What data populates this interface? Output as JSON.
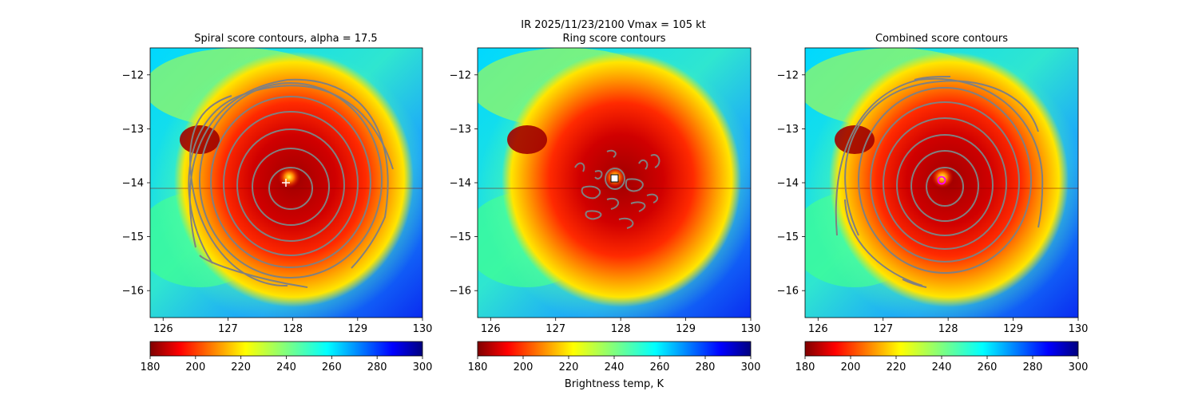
{
  "suptitle": "IR  2025/11/23/2100    Vmax = 105 kt",
  "colorbar_label": "Brightness temp, K",
  "chart_data": [
    {
      "type": "heatmap",
      "title": "Spiral score contours, alpha = 17.5",
      "xlim": [
        125.8,
        130.0
      ],
      "ylim": [
        -16.5,
        -11.5
      ],
      "xticks": [
        126,
        127,
        128,
        129,
        130
      ],
      "yticks": [
        -12,
        -13,
        -14,
        -15,
        -16
      ],
      "xtick_labels": [
        "126",
        "127",
        "128",
        "129",
        "130"
      ],
      "ytick_labels": [
        "−12",
        "−13",
        "−14",
        "−15",
        "−16"
      ],
      "center_marker": {
        "lon": 128.35,
        "lat": -14.0,
        "symbol": "plus",
        "color": "#ffffff"
      },
      "contour_color": "#808080",
      "colorbar": {
        "cmap": "jet_r",
        "vmin": 180,
        "vmax": 300,
        "ticks": [
          "180",
          "200",
          "220",
          "240",
          "260",
          "280",
          "300"
        ]
      }
    },
    {
      "type": "heatmap",
      "title": "Ring score contours",
      "xlim": [
        125.8,
        130.0
      ],
      "ylim": [
        -16.5,
        -11.5
      ],
      "xticks": [
        126,
        127,
        128,
        129,
        130
      ],
      "yticks": [
        -12,
        -13,
        -14,
        -15,
        -16
      ],
      "xtick_labels": [
        "126",
        "127",
        "128",
        "129",
        "130"
      ],
      "ytick_labels": [
        "−12",
        "−13",
        "−14",
        "−15",
        "−16"
      ],
      "center_marker": {
        "lon": 128.35,
        "lat": -13.93,
        "symbol": "square",
        "color": "#ffffff"
      },
      "contour_color": "#808080",
      "colorbar": {
        "cmap": "jet_r",
        "vmin": 180,
        "vmax": 300,
        "ticks": [
          "180",
          "200",
          "220",
          "240",
          "260",
          "280",
          "300"
        ]
      }
    },
    {
      "type": "heatmap",
      "title": "Combined score contours",
      "xlim": [
        125.8,
        130.0
      ],
      "ylim": [
        -16.5,
        -11.5
      ],
      "xticks": [
        126,
        127,
        128,
        129,
        130
      ],
      "yticks": [
        -12,
        -13,
        -14,
        -15,
        -16
      ],
      "xtick_labels": [
        "126",
        "127",
        "128",
        "129",
        "130"
      ],
      "ytick_labels": [
        "−12",
        "−13",
        "−14",
        "−15",
        "−16"
      ],
      "center_marker": {
        "lon": 128.38,
        "lat": -13.95,
        "symbol": "circle",
        "color": "#ff00ff"
      },
      "contour_color": "#808080",
      "colorbar": {
        "cmap": "jet_r",
        "vmin": 180,
        "vmax": 300,
        "ticks": [
          "180",
          "200",
          "220",
          "240",
          "260",
          "280",
          "300"
        ]
      }
    }
  ]
}
